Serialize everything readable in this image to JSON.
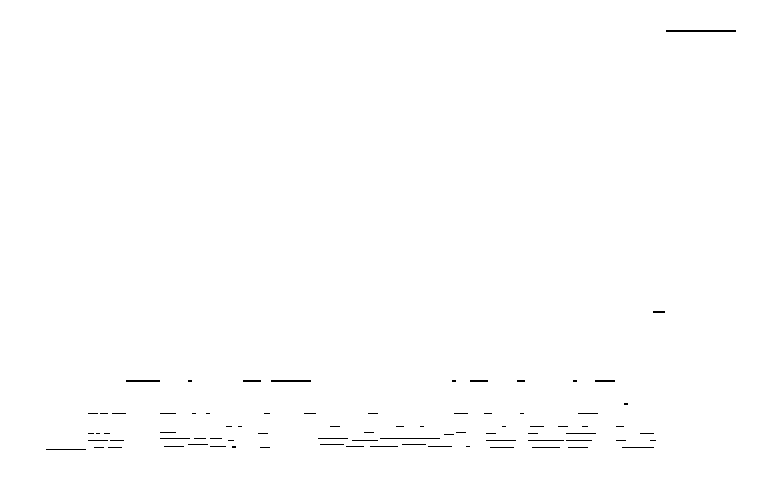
{
  "screen": {
    "description_visible_text": "",
    "background_color": "#ffffff",
    "mark_color": "#000000"
  }
}
